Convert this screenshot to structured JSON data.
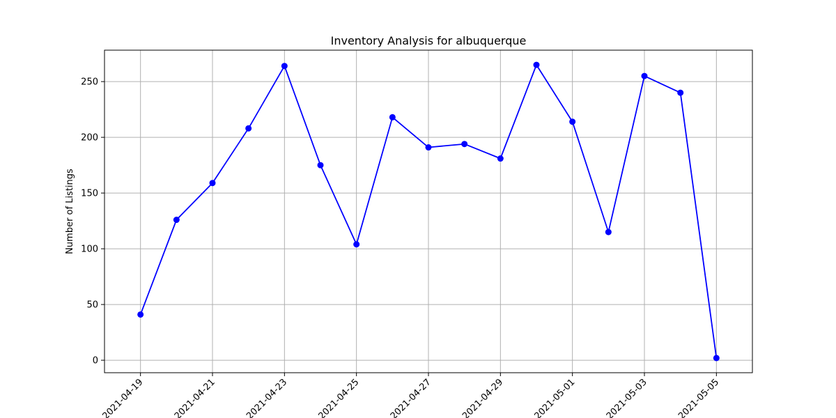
{
  "chart_data": {
    "type": "line",
    "title": "Inventory Analysis for albuquerque",
    "xlabel": "",
    "ylabel": "Number of Listings",
    "x": [
      "2021-04-19",
      "2021-04-20",
      "2021-04-21",
      "2021-04-22",
      "2021-04-23",
      "2021-04-24",
      "2021-04-25",
      "2021-04-26",
      "2021-04-27",
      "2021-04-28",
      "2021-04-29",
      "2021-04-30",
      "2021-05-01",
      "2021-05-02",
      "2021-05-03",
      "2021-05-04",
      "2021-05-05"
    ],
    "series": [
      {
        "values": [
          41,
          126,
          159,
          208,
          264,
          175,
          104,
          218,
          191,
          194,
          181,
          265,
          214,
          115,
          255,
          240,
          2
        ]
      }
    ],
    "xticks": [
      "2021-04-19",
      "2021-04-21",
      "2021-04-23",
      "2021-04-25",
      "2021-04-27",
      "2021-04-29",
      "2021-05-01",
      "2021-05-03",
      "2021-05-05"
    ],
    "yticks": [
      0,
      50,
      100,
      150,
      200,
      250
    ],
    "xlim": [
      "2021-04-18",
      "2021-05-06"
    ],
    "ylim": [
      -11.2,
      278.2
    ],
    "grid": true,
    "line_color": "#0000ff",
    "marker_color": "#0000ff"
  }
}
